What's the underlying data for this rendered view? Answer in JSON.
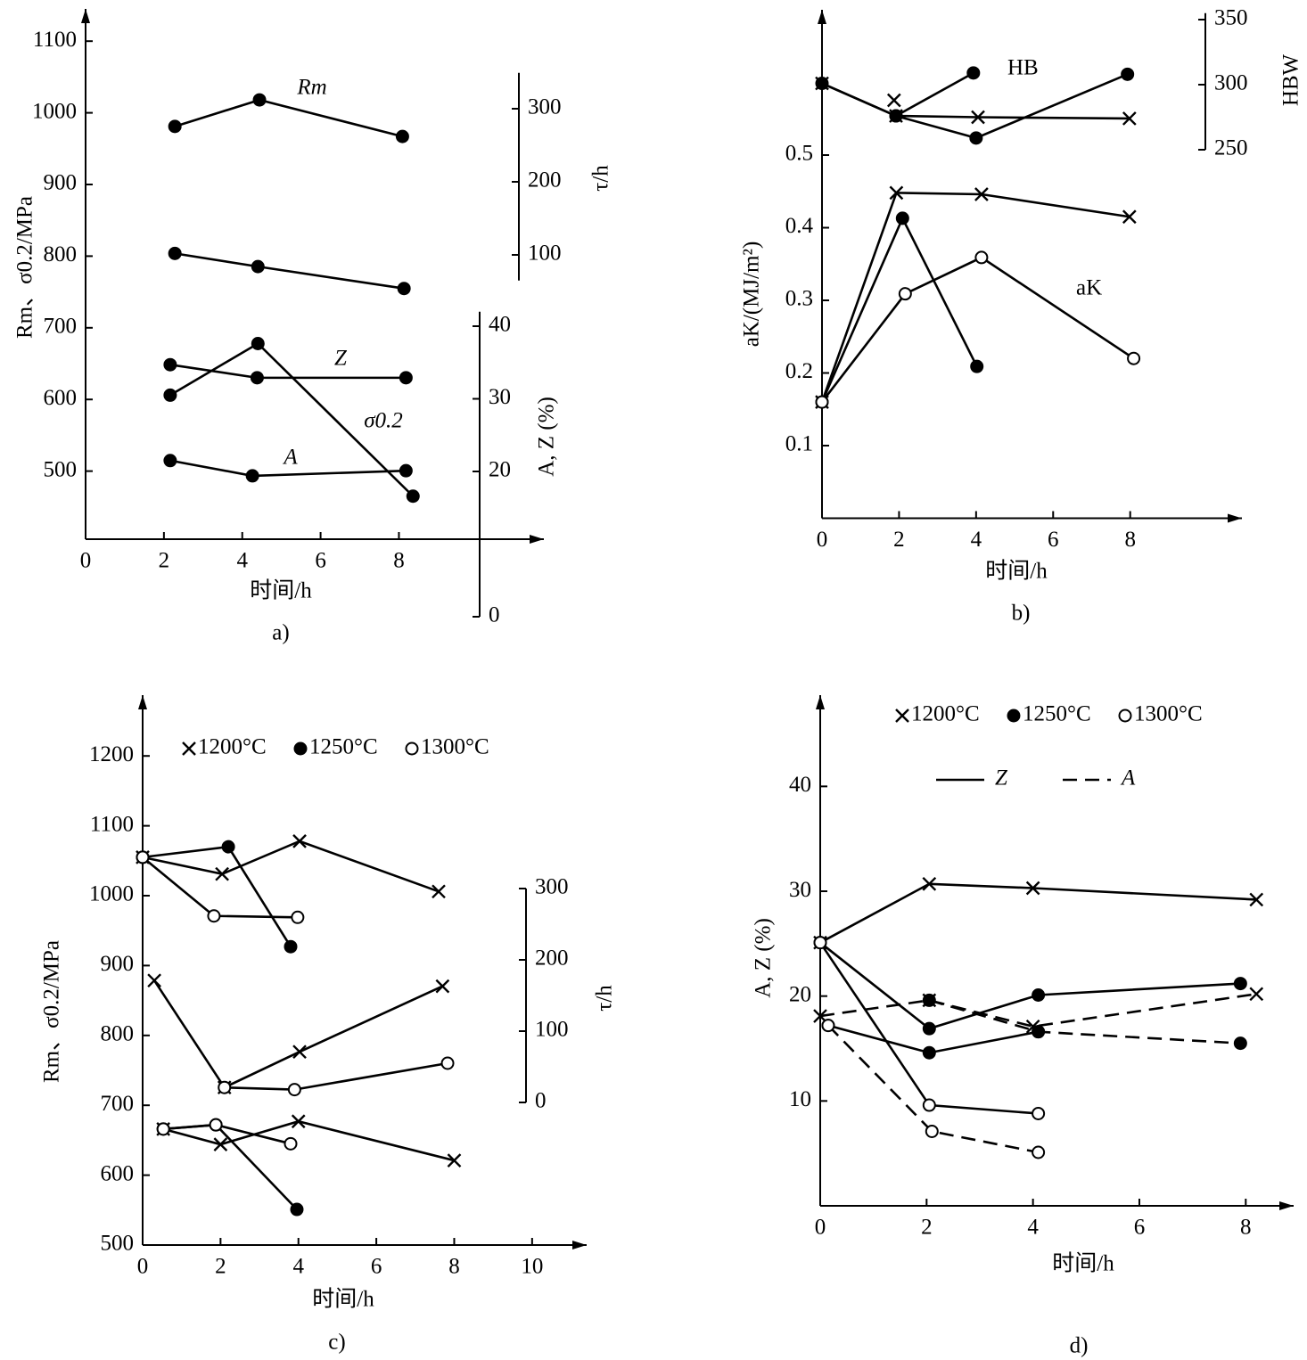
{
  "chart_data": [
    {
      "type": "line",
      "caption": "a)",
      "xlabel": "时间/h",
      "ylabel": "Rm、σ0.2/MPa",
      "y2label": "τ/h",
      "y3label": "A, Z (%)",
      "xlim": [
        0,
        11.7
      ],
      "xticks": [
        0,
        2,
        4,
        6,
        8
      ],
      "ylim": [
        405,
        1145
      ],
      "yticks": [
        500,
        600,
        700,
        800,
        900,
        1000,
        1100
      ],
      "y2lim": [
        65,
        349
      ],
      "y2ticks": [
        100,
        200,
        300
      ],
      "y3lim": [
        0,
        42
      ],
      "y3ticks": [
        0,
        20,
        30,
        40
      ],
      "series": [
        {
          "name": "Rm",
          "marker": "dot",
          "x": [
            2.28,
            4.44,
            8.09
          ],
          "values": [
            981,
            1018,
            967
          ]
        },
        {
          "marker": "dot",
          "axis": "y2",
          "x": [
            2.28,
            4.4,
            8.13
          ],
          "values": [
            102,
            84,
            54
          ]
        },
        {
          "name": "σ0.2",
          "marker": "dot",
          "x": [
            2.16,
            4.4,
            8.36
          ],
          "values": [
            606,
            678,
            465
          ]
        },
        {
          "name": "Z",
          "marker": "dot",
          "axis": "y3",
          "x": [
            2.16,
            4.38,
            8.18
          ],
          "values": [
            34.7,
            32.9,
            32.9
          ]
        },
        {
          "name": "A",
          "marker": "dot",
          "axis": "y3",
          "x": [
            2.16,
            4.26,
            8.18
          ],
          "values": [
            21.5,
            19.4,
            20.1
          ]
        }
      ]
    },
    {
      "type": "line",
      "caption": "b)",
      "xlabel": "时间/h",
      "ylabel": "aK/(MJ/m²)",
      "y2label": "HBW",
      "xlim": [
        0,
        10.9
      ],
      "xticks": [
        0,
        2,
        4,
        6,
        8
      ],
      "ylim": [
        0,
        0.7
      ],
      "yticks": [
        0.1,
        0.2,
        0.3,
        0.4,
        0.5
      ],
      "y2lim": [
        250,
        355
      ],
      "y2ticks": [
        250,
        300,
        350
      ],
      "annotations": [
        "HB",
        "aK"
      ],
      "series": [
        {
          "marker": "x",
          "axis": "y2",
          "x": [
            0,
            1.92,
            4.05,
            7.98
          ],
          "values": [
            301,
            276,
            275,
            274
          ]
        },
        {
          "marker": "dot",
          "axis": "y2",
          "x": [
            0,
            1.92,
            4.0,
            7.93
          ],
          "values": [
            301,
            276,
            259,
            308
          ]
        },
        {
          "marker": "dot",
          "axis": "y2",
          "x": [
            1.92,
            3.93
          ],
          "values": [
            276,
            309
          ]
        },
        {
          "marker": "x",
          "axis": "y2",
          "x": [
            1.87
          ],
          "values": [
            288
          ]
        },
        {
          "marker": "x",
          "x": [
            0,
            1.93,
            4.14,
            7.98
          ],
          "values": [
            0.16,
            0.448,
            0.446,
            0.415
          ]
        },
        {
          "marker": "dot",
          "x": [
            0,
            2.09,
            4.02
          ],
          "values": [
            0.16,
            0.413,
            0.209
          ]
        },
        {
          "marker": "circle",
          "x": [
            0,
            2.16,
            4.14,
            8.09
          ],
          "values": [
            0.16,
            0.309,
            0.359,
            0.22
          ]
        }
      ]
    },
    {
      "type": "line",
      "caption": "c)",
      "xlabel": "时间/h",
      "ylabel": "Rm、σ0.2/MPa",
      "y2label": "τ/h",
      "xlim": [
        0,
        11.4
      ],
      "xticks": [
        0,
        2,
        4,
        6,
        8,
        10
      ],
      "ylim": [
        500,
        1287
      ],
      "yticks": [
        500,
        600,
        700,
        800,
        900,
        1000,
        1100,
        1200
      ],
      "y2lim": [
        0,
        300
      ],
      "y2ticks": [
        0,
        100,
        200,
        300
      ],
      "legend": [
        {
          "marker": "x",
          "label": "1200°C"
        },
        {
          "marker": "dot",
          "label": "1250°C"
        },
        {
          "marker": "circle",
          "label": "1300°C"
        }
      ],
      "series": [
        {
          "marker": "x",
          "x": [
            0,
            2.04,
            4.03,
            7.6
          ],
          "values": [
            1055,
            1031,
            1078,
            1006
          ]
        },
        {
          "marker": "dot",
          "x": [
            0,
            2.2,
            3.8
          ],
          "values": [
            1055,
            1070,
            927
          ]
        },
        {
          "marker": "circle",
          "x": [
            0,
            1.83,
            3.98
          ],
          "values": [
            1055,
            971,
            969
          ]
        },
        {
          "marker": "x",
          "axis": "y2",
          "x": [
            0.3,
            2.1,
            4.03,
            7.7
          ],
          "values": [
            171,
            21,
            71,
            163
          ]
        },
        {
          "marker": "circle",
          "axis": "y2",
          "x": [
            2.1,
            3.9,
            7.83
          ],
          "values": [
            21,
            18,
            55
          ]
        },
        {
          "marker": "x",
          "x": [
            0.53,
            2.0,
            4.0,
            8.0
          ],
          "values": [
            666,
            644,
            677,
            621
          ]
        },
        {
          "marker": "dot",
          "x": [
            0.53,
            1.88,
            3.96
          ],
          "values": [
            666,
            672,
            551
          ]
        },
        {
          "marker": "circle",
          "x": [
            0.53,
            1.88,
            3.8
          ],
          "values": [
            666,
            672,
            645
          ]
        }
      ]
    },
    {
      "type": "line",
      "caption": "d)",
      "xlabel": "时间/h",
      "ylabel": "A, Z (%)",
      "xlim": [
        0,
        8.9
      ],
      "xticks": [
        0,
        2,
        4,
        6,
        8
      ],
      "ylim": [
        0,
        48.7
      ],
      "yticks": [
        10,
        20,
        30,
        40
      ],
      "legend": [
        {
          "marker": "x",
          "label": "1200°C"
        },
        {
          "marker": "dot",
          "label": "1250°C"
        },
        {
          "marker": "circle",
          "label": "1300°C"
        }
      ],
      "line_legend": [
        {
          "dash": false,
          "label": "Z"
        },
        {
          "dash": true,
          "label": "A"
        }
      ],
      "series": [
        {
          "marker": "x",
          "dash": false,
          "x": [
            0,
            2.05,
            4.0,
            8.2
          ],
          "values": [
            25.1,
            30.7,
            30.3,
            29.2
          ]
        },
        {
          "marker": "dot",
          "dash": false,
          "x": [
            0,
            2.05,
            4.1,
            7.9
          ],
          "values": [
            25.1,
            16.9,
            20.1,
            21.2
          ]
        },
        {
          "marker": "circle",
          "dash": false,
          "x": [
            0,
            2.05,
            4.1
          ],
          "values": [
            25.1,
            9.6,
            8.8
          ]
        },
        {
          "marker": "dot",
          "dash": false,
          "x": [
            0.15,
            2.05,
            4.1
          ],
          "values": [
            17.2,
            14.6,
            16.6
          ]
        },
        {
          "marker": "x",
          "dash": true,
          "x": [
            0,
            2.05,
            4.0,
            8.2
          ],
          "values": [
            18.1,
            19.6,
            17.1,
            20.2
          ]
        },
        {
          "marker": "dot",
          "dash": true,
          "x": [
            2.05,
            4.1,
            7.9
          ],
          "values": [
            19.6,
            16.6,
            15.5
          ]
        },
        {
          "marker": "circle",
          "dash": true,
          "x": [
            0.15,
            2.1,
            4.1
          ],
          "values": [
            17.2,
            7.1,
            5.1
          ]
        }
      ]
    }
  ]
}
